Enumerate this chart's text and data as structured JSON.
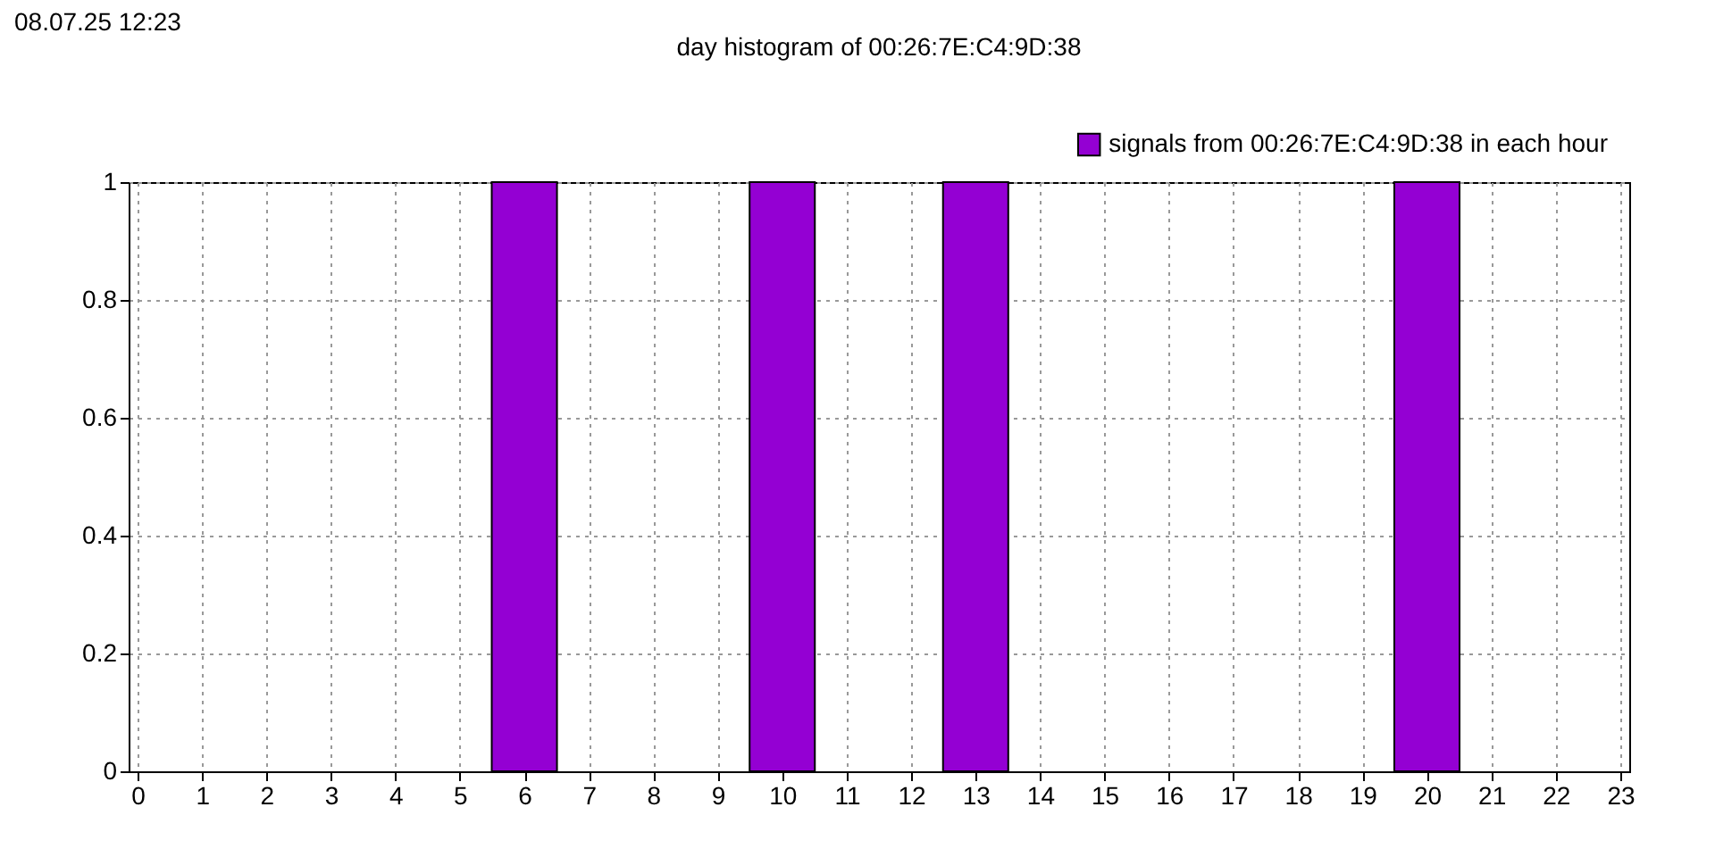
{
  "chart_data": {
    "type": "bar",
    "title": "day histogram of 00:26:7E:C4:9D:38",
    "annotations": [
      "08.07.25 12:23"
    ],
    "x": [
      6,
      10,
      13,
      20
    ],
    "series": [
      {
        "name": "signals from 00:26:7E:C4:9D:38 in each hour",
        "color": "#9400d3",
        "values": [
          1,
          1,
          1,
          1
        ]
      }
    ],
    "xlim": [
      0,
      23
    ],
    "xticks": [
      0,
      1,
      2,
      3,
      4,
      5,
      6,
      7,
      8,
      9,
      10,
      11,
      12,
      13,
      14,
      15,
      16,
      17,
      18,
      19,
      20,
      21,
      22,
      23
    ],
    "ylim": [
      0,
      1
    ],
    "yticks": [
      0,
      0.2,
      0.4,
      0.6,
      0.8,
      1
    ],
    "grid": true,
    "legend": "top right"
  }
}
